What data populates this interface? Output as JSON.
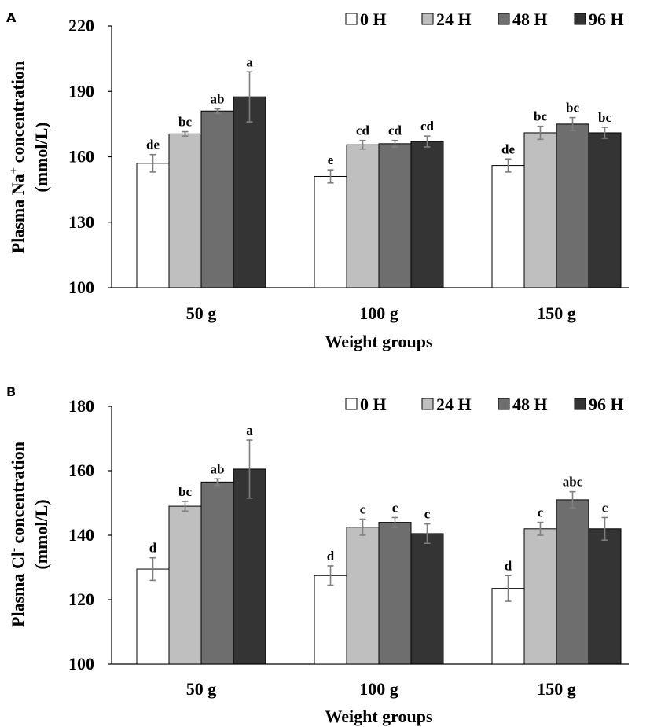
{
  "chart_data": [
    {
      "type": "bar",
      "panel": "A",
      "ylabel_line1": "Plasma Na",
      "ylabel_sup": "+",
      "ylabel_line1_rest": " concentration",
      "ylabel_line2": "(mmol/L)",
      "xlabel": "Weight groups",
      "ylim": [
        100,
        220
      ],
      "yticks": [
        "100",
        "130",
        "160",
        "190",
        "220"
      ],
      "ytick_values": [
        100,
        130,
        160,
        190,
        220
      ],
      "categories": [
        "50 g",
        "100 g",
        "150 g"
      ],
      "legend_position": "top-right",
      "series": [
        {
          "name": "0 H",
          "color": "#ffffff",
          "values": [
            157,
            151,
            156
          ],
          "errors": [
            4,
            3,
            3
          ],
          "labels": [
            "de",
            "e",
            "de"
          ]
        },
        {
          "name": "24 H",
          "color": "#bfbfbf",
          "values": [
            170.5,
            165.5,
            171
          ],
          "errors": [
            1,
            2,
            3
          ],
          "labels": [
            "bc",
            "cd",
            "bc"
          ]
        },
        {
          "name": "48 H",
          "color": "#6e6e6e",
          "values": [
            181,
            166,
            175
          ],
          "errors": [
            1,
            1.5,
            3
          ],
          "labels": [
            "ab",
            "cd",
            "bc"
          ]
        },
        {
          "name": "96 H",
          "color": "#343434",
          "values": [
            187.5,
            167,
            171
          ],
          "errors": [
            11.5,
            2.5,
            2.5
          ],
          "labels": [
            "a",
            "cd",
            "bc"
          ]
        }
      ]
    },
    {
      "type": "bar",
      "panel": "B",
      "ylabel_line1": "Plasma Cl",
      "ylabel_sup": "-",
      "ylabel_line1_rest": " concentration",
      "ylabel_line2": "(mmol/L)",
      "xlabel": "Weight groups",
      "ylim": [
        100,
        180
      ],
      "yticks": [
        "100",
        "120",
        "140",
        "160",
        "180"
      ],
      "ytick_values": [
        100,
        120,
        140,
        160,
        180
      ],
      "categories": [
        "50 g",
        "100 g",
        "150 g"
      ],
      "legend_position": "top-right",
      "series": [
        {
          "name": "0 H",
          "color": "#ffffff",
          "values": [
            129.5,
            127.5,
            123.5
          ],
          "errors": [
            3.5,
            3,
            4
          ],
          "labels": [
            "d",
            "d",
            "d"
          ]
        },
        {
          "name": "24 H",
          "color": "#bfbfbf",
          "values": [
            149,
            142.5,
            142
          ],
          "errors": [
            1.5,
            2.5,
            2
          ],
          "labels": [
            "bc",
            "c",
            "c"
          ]
        },
        {
          "name": "48 H",
          "color": "#6e6e6e",
          "values": [
            156.5,
            144,
            151
          ],
          "errors": [
            1,
            1.5,
            2.5
          ],
          "labels": [
            "ab",
            "c",
            "abc"
          ]
        },
        {
          "name": "96 H",
          "color": "#343434",
          "values": [
            160.5,
            140.5,
            142
          ],
          "errors": [
            9,
            3,
            3.5
          ],
          "labels": [
            "a",
            "c",
            "c"
          ]
        }
      ]
    }
  ]
}
